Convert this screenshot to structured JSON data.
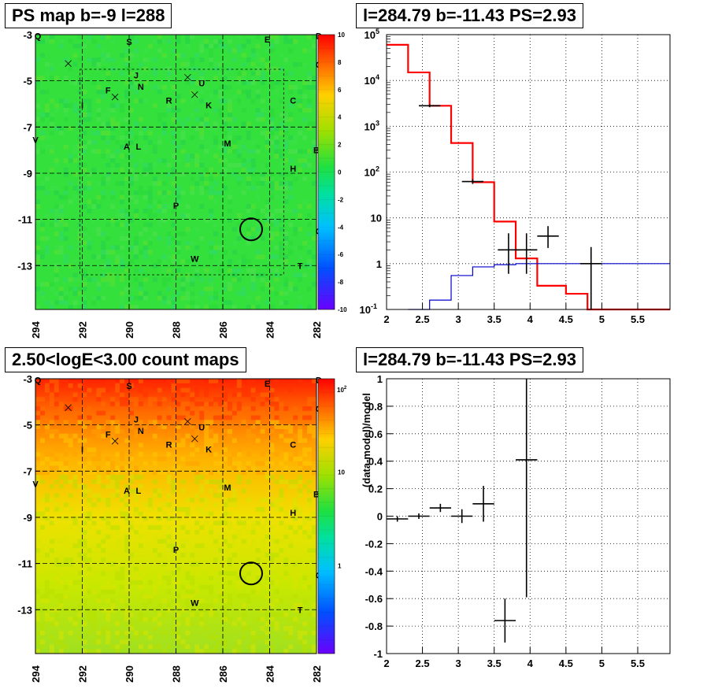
{
  "panels": {
    "top_left_title": "PS map b=-9 l=288",
    "top_right_title": "l=284.79 b=-11.43 PS=2.93",
    "bottom_left_title": "2.50<logE<3.00 count maps",
    "bottom_right_title": "l=284.79 b=-11.43 PS=2.93"
  },
  "colors": {
    "model_red": "#ff0000",
    "background_blue": "#0000cc",
    "data_black": "#000000"
  },
  "chart_data": [
    {
      "type": "heatmap",
      "title": "PS map b=-9 l=288",
      "x_ticks": [
        "294",
        "292",
        "290",
        "288",
        "286",
        "284",
        "282"
      ],
      "y_ticks": [
        "-3",
        "-5",
        "-7",
        "-9",
        "-11",
        "-13"
      ],
      "xlim": [
        294,
        282
      ],
      "ylim": [
        -14.9,
        -3
      ],
      "colorbar_ticks": [
        "10",
        "8",
        "6",
        "4",
        "2",
        "0",
        "-2",
        "-4",
        "-6",
        "-8",
        "-10"
      ],
      "colorbar_range": [
        -10,
        10
      ],
      "circle": {
        "l": 284.79,
        "b": -11.43
      },
      "sources": [
        {
          "label": "Q",
          "l": 293.9,
          "b": -3.05
        },
        {
          "label": "S",
          "l": 290.0,
          "b": -3.3
        },
        {
          "label": "E",
          "l": 284.1,
          "b": -3.2
        },
        {
          "label": "D",
          "l": 281.9,
          "b": -3.05
        },
        {
          "label": "O",
          "l": 281.9,
          "b": -4.3
        },
        {
          "label": "J",
          "l": 289.7,
          "b": -4.75
        },
        {
          "label": "N",
          "l": 289.5,
          "b": -5.25
        },
        {
          "label": "F",
          "l": 290.9,
          "b": -5.4
        },
        {
          "label": "U",
          "l": 286.9,
          "b": -5.1
        },
        {
          "label": "R",
          "l": 288.3,
          "b": -5.85
        },
        {
          "label": "K",
          "l": 286.6,
          "b": -6.05
        },
        {
          "label": "C",
          "l": 283.0,
          "b": -5.85
        },
        {
          "label": "I",
          "l": 292.0,
          "b": -6.05
        },
        {
          "label": "V",
          "l": 294.0,
          "b": -7.55
        },
        {
          "label": "A",
          "l": 290.1,
          "b": -7.85
        },
        {
          "label": "L",
          "l": 289.6,
          "b": -7.85
        },
        {
          "label": "M",
          "l": 285.8,
          "b": -7.7
        },
        {
          "label": "B",
          "l": 282.0,
          "b": -8.0
        },
        {
          "label": "H",
          "l": 283.0,
          "b": -8.8
        },
        {
          "label": "P",
          "l": 288.0,
          "b": -10.4
        },
        {
          "label": "G",
          "l": 281.9,
          "b": -11.5
        },
        {
          "label": "W",
          "l": 287.2,
          "b": -12.7
        },
        {
          "label": "T",
          "l": 282.7,
          "b": -13.0
        }
      ],
      "crosses": [
        {
          "l": 292.6,
          "b": -4.25
        },
        {
          "l": 290.6,
          "b": -5.7
        },
        {
          "l": 287.5,
          "b": -4.85
        },
        {
          "l": 287.2,
          "b": -5.6
        }
      ]
    },
    {
      "type": "line",
      "title": "l=284.79 b=-11.43 PS=2.93",
      "x_ticks": [
        "2",
        "2.5",
        "3",
        "3.5",
        "4",
        "4.5",
        "5",
        "5.5"
      ],
      "xlim": [
        2,
        5.95
      ],
      "y_scale": "log",
      "ylim": [
        0.1,
        100000
      ],
      "y_tick_labels": [
        "10^-1",
        "1",
        "10",
        "10^2",
        "10^3",
        "10^4",
        "10^5"
      ],
      "series": [
        {
          "color": "#ff0000",
          "steps": [
            {
              "x0": 2.0,
              "x1": 2.3,
              "y": 60000
            },
            {
              "x0": 2.3,
              "x1": 2.6,
              "y": 15000
            },
            {
              "x0": 2.6,
              "x1": 2.9,
              "y": 2800
            },
            {
              "x0": 2.9,
              "x1": 3.2,
              "y": 430
            },
            {
              "x0": 3.2,
              "x1": 3.5,
              "y": 60
            },
            {
              "x0": 3.5,
              "x1": 3.8,
              "y": 8.3
            },
            {
              "x0": 3.8,
              "x1": 4.1,
              "y": 1.3
            },
            {
              "x0": 4.1,
              "x1": 4.5,
              "y": 0.33
            },
            {
              "x0": 4.5,
              "x1": 4.8,
              "y": 0.22
            },
            {
              "x0": 4.8,
              "x1": 5.95,
              "y": 0.1
            }
          ]
        },
        {
          "color": "#0000cc",
          "steps": [
            {
              "x0": 2.3,
              "x1": 2.6,
              "y": 0.1
            },
            {
              "x0": 2.6,
              "x1": 2.9,
              "y": 0.16
            },
            {
              "x0": 2.9,
              "x1": 3.2,
              "y": 0.55
            },
            {
              "x0": 3.2,
              "x1": 3.5,
              "y": 0.85
            },
            {
              "x0": 3.5,
              "x1": 3.8,
              "y": 0.95
            },
            {
              "x0": 3.8,
              "x1": 5.95,
              "y": 1.0
            }
          ]
        }
      ],
      "data_points": [
        {
          "x": 2.6,
          "x_err": 0.15,
          "y": 2800,
          "y_lo": 2600,
          "y_hi": 3000
        },
        {
          "x": 3.2,
          "x_err": 0.15,
          "y": 62,
          "y_lo": 55,
          "y_hi": 70
        },
        {
          "x": 3.7,
          "x_err": 0.15,
          "y": 2.0,
          "y_lo": 0.6,
          "y_hi": 4.6
        },
        {
          "x": 3.95,
          "x_err": 0.15,
          "y": 2.0,
          "y_lo": 0.6,
          "y_hi": 4.6
        },
        {
          "x": 4.25,
          "x_err": 0.15,
          "y": 4.0,
          "y_lo": 2.2,
          "y_hi": 6.6
        },
        {
          "x": 4.85,
          "x_err": 0.15,
          "y": 1.0,
          "y_lo": 0.1,
          "y_hi": 2.3
        }
      ]
    },
    {
      "type": "heatmap",
      "title": "2.50<logE<3.00 count maps",
      "x_ticks": [
        "294",
        "292",
        "290",
        "288",
        "286",
        "284",
        "282"
      ],
      "y_ticks": [
        "-3",
        "-5",
        "-7",
        "-9",
        "-11",
        "-13"
      ],
      "xlim": [
        294,
        282
      ],
      "ylim": [
        -14.9,
        -3
      ],
      "colorbar_ticks": [
        "10^2",
        "10",
        "1"
      ],
      "colorbar_scale": "log",
      "circle": {
        "l": 284.79,
        "b": -11.43
      }
    },
    {
      "type": "scatter",
      "title": "l=284.79 b=-11.43 PS=2.93",
      "ylabel": "(data-model)/model",
      "x_ticks": [
        "2",
        "2.5",
        "3",
        "3.5",
        "4",
        "4.5",
        "5",
        "5.5"
      ],
      "y_ticks": [
        "1",
        "0.8",
        "0.6",
        "0.4",
        "0.2",
        "0",
        "-0.2",
        "-0.4",
        "-0.6",
        "-0.8",
        "-1"
      ],
      "xlim": [
        2,
        5.95
      ],
      "ylim": [
        -1,
        1
      ],
      "points": [
        {
          "x": 2.15,
          "x_err": 0.15,
          "y": -0.02,
          "y_err": 0.02
        },
        {
          "x": 2.45,
          "x_err": 0.15,
          "y": 0.0,
          "y_err": 0.02
        },
        {
          "x": 2.75,
          "x_err": 0.15,
          "y": 0.06,
          "y_err": 0.03
        },
        {
          "x": 3.05,
          "x_err": 0.15,
          "y": 0.0,
          "y_err": 0.05
        },
        {
          "x": 3.35,
          "x_err": 0.15,
          "y": 0.09,
          "y_err": 0.13
        },
        {
          "x": 3.65,
          "x_err": 0.15,
          "y": -0.76,
          "y_err": 0.16
        },
        {
          "x": 3.95,
          "x_err": 0.15,
          "y": 0.41,
          "y_err": 1.0
        }
      ]
    }
  ]
}
